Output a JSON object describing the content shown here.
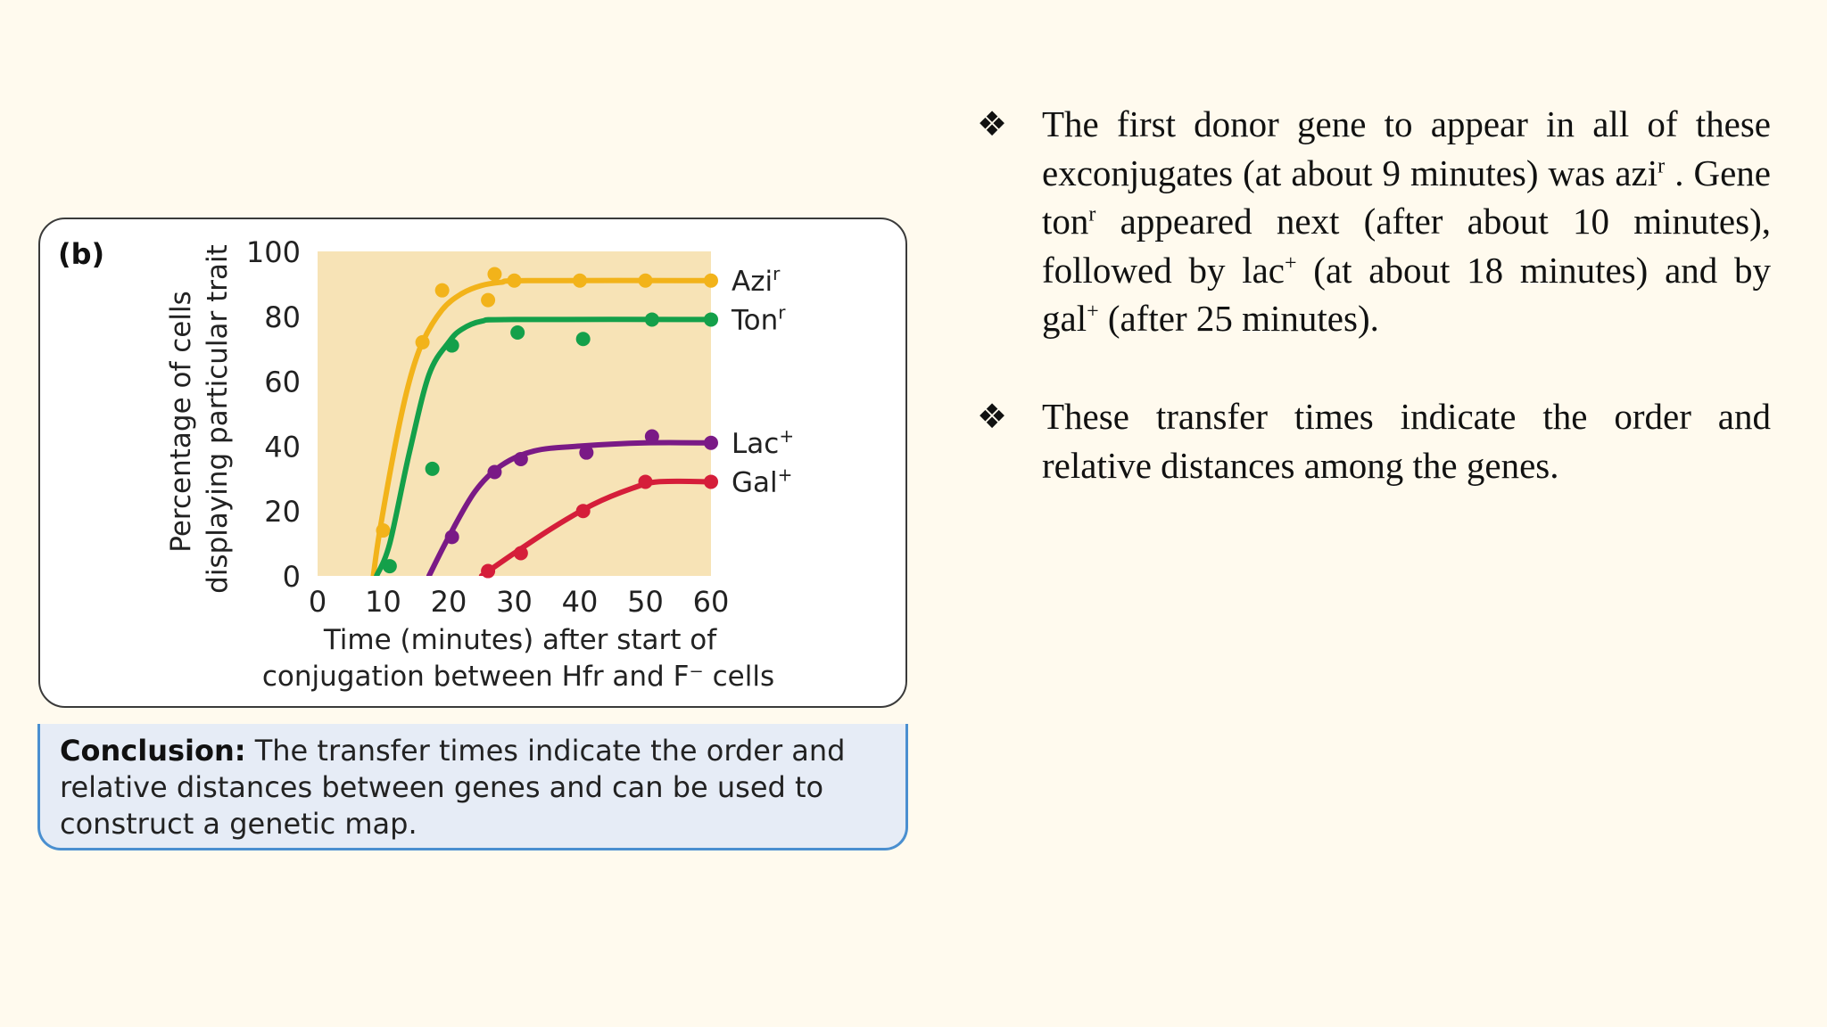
{
  "figure": {
    "panel_label": "(b)",
    "conclusion_label": "Conclusion:",
    "conclusion_text": " The transfer times indicate the order and relative distances between genes and can be used to construct a genetic map."
  },
  "chart_data": {
    "type": "line",
    "ylabel_line1": "Percentage of cells",
    "ylabel_line2": "displaying particular trait",
    "xlabel_line1": "Time (minutes) after start of",
    "xlabel_line2": "conjugation between Hfr and F⁻ cells",
    "xlim": [
      0,
      60
    ],
    "ylim": [
      0,
      100
    ],
    "xticks": [
      0,
      10,
      20,
      30,
      40,
      50,
      60
    ],
    "yticks": [
      0,
      20,
      40,
      60,
      80,
      100
    ],
    "plot_background": "#f7e3b6",
    "series": [
      {
        "name": "Azi",
        "sup": "r",
        "color": "#f2b31a",
        "curve": [
          [
            8.5,
            0
          ],
          [
            9.5,
            14
          ],
          [
            12,
            42
          ],
          [
            14,
            60
          ],
          [
            16,
            72
          ],
          [
            19,
            82
          ],
          [
            22,
            87
          ],
          [
            25,
            89.5
          ],
          [
            28,
            90.5
          ],
          [
            32,
            91
          ],
          [
            60,
            91
          ]
        ],
        "points": [
          [
            10,
            14
          ],
          [
            16,
            72
          ],
          [
            19,
            88
          ],
          [
            26,
            85
          ],
          [
            27,
            93
          ],
          [
            30,
            91
          ],
          [
            40,
            91
          ],
          [
            50,
            91
          ],
          [
            60,
            91
          ]
        ]
      },
      {
        "name": "Ton",
        "sup": "r",
        "color": "#14a04a",
        "curve": [
          [
            9,
            0
          ],
          [
            11,
            10
          ],
          [
            14,
            38
          ],
          [
            17,
            62
          ],
          [
            20,
            72
          ],
          [
            22,
            76
          ],
          [
            25,
            78.5
          ],
          [
            30,
            79
          ],
          [
            60,
            79
          ]
        ],
        "points": [
          [
            11,
            3
          ],
          [
            17.5,
            33
          ],
          [
            20.5,
            71
          ],
          [
            30.5,
            75
          ],
          [
            40.5,
            73
          ],
          [
            51,
            79
          ],
          [
            60,
            79
          ]
        ]
      },
      {
        "name": "Lac",
        "sup": "+",
        "color": "#7a1a86",
        "curve": [
          [
            17,
            0
          ],
          [
            20,
            12
          ],
          [
            24,
            26
          ],
          [
            28,
            34
          ],
          [
            33,
            38.5
          ],
          [
            40,
            40
          ],
          [
            50,
            41
          ],
          [
            60,
            41
          ]
        ],
        "points": [
          [
            20.5,
            12
          ],
          [
            27,
            32
          ],
          [
            31,
            36
          ],
          [
            41,
            38
          ],
          [
            51,
            43
          ],
          [
            60,
            41
          ]
        ]
      },
      {
        "name": "Gal",
        "sup": "+",
        "color": "#d51e3a",
        "curve": [
          [
            25,
            0
          ],
          [
            30,
            7
          ],
          [
            36,
            15
          ],
          [
            42,
            22
          ],
          [
            48,
            27
          ],
          [
            52,
            29
          ],
          [
            60,
            29
          ]
        ],
        "points": [
          [
            26,
            1.5
          ],
          [
            31,
            7
          ],
          [
            40.5,
            20
          ],
          [
            50,
            29
          ],
          [
            60,
            29
          ]
        ]
      }
    ]
  },
  "bullets": [
    {
      "symbol": "❖",
      "t1": "The first donor gene to appear in all of these exconjugates (at about 9 minutes) was azi",
      "s1": "r",
      "t2": " . Gene ton",
      "s2": "r",
      "t3": " appeared next (after about 10 minutes), followed by lac",
      "s3": "+",
      "t4": " (at about 18 minutes) and by gal",
      "s4": "+",
      "t5": " (after 25 minutes)."
    },
    {
      "symbol": "❖",
      "t1": "These transfer times indicate the order and relative distances among the genes."
    }
  ]
}
